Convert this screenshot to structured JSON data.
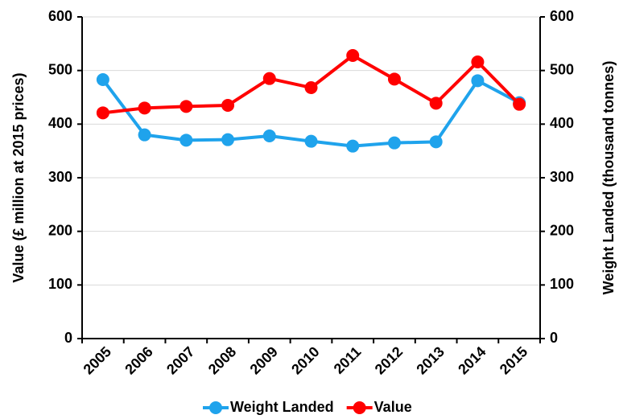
{
  "chart_data": {
    "type": "line",
    "y_label": "Value (£ million at 2015 prices)",
    "y2_label": "Weight Landed (thousand tonnes)",
    "categories": [
      "2005",
      "2006",
      "2007",
      "2008",
      "2009",
      "2010",
      "2011",
      "2012",
      "2013",
      "2014",
      "2015"
    ],
    "series": [
      {
        "name": "Weight Landed",
        "color": "#1fa3ec",
        "axis": "y2",
        "values": [
          483,
          380,
          370,
          371,
          378,
          368,
          359,
          365,
          367,
          481,
          440
        ]
      },
      {
        "name": "Value",
        "color": "#ff0000",
        "values": [
          421,
          430,
          433,
          435,
          485,
          468,
          528,
          484,
          439,
          516,
          437
        ]
      }
    ],
    "ylim": [
      0,
      600
    ],
    "yticks": [
      0,
      100,
      200,
      300,
      400,
      500,
      600
    ],
    "y2lim": [
      0,
      600
    ],
    "y2ticks": [
      0,
      100,
      200,
      300,
      400,
      500,
      600
    ],
    "grid": true,
    "legend": "bottom"
  }
}
